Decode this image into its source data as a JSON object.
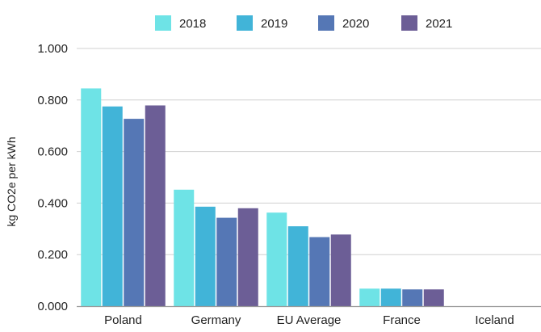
{
  "chart_data": {
    "type": "bar",
    "categories": [
      "Poland",
      "Germany",
      "EU Average",
      "France",
      "Iceland"
    ],
    "series": [
      {
        "name": "2018",
        "color": "#6ee3e6",
        "values": [
          0.845,
          0.452,
          0.363,
          0.068,
          0.0
        ]
      },
      {
        "name": "2019",
        "color": "#41b4d8",
        "values": [
          0.775,
          0.386,
          0.31,
          0.068,
          0.0
        ]
      },
      {
        "name": "2020",
        "color": "#5577b5",
        "values": [
          0.727,
          0.343,
          0.268,
          0.065,
          0.0
        ]
      },
      {
        "name": "2021",
        "color": "#6c5e96",
        "values": [
          0.779,
          0.38,
          0.278,
          0.065,
          0.0
        ]
      }
    ],
    "ylabel": "kg CO2e per kWh",
    "xlabel": "",
    "ylim": [
      0,
      1.0
    ],
    "yticks": [
      "0.000",
      "0.200",
      "0.400",
      "0.600",
      "0.800",
      "1.000"
    ],
    "ytick_values": [
      0,
      0.2,
      0.4,
      0.6,
      0.8,
      1.0
    ],
    "grid": true,
    "legend_position": "top-center"
  }
}
